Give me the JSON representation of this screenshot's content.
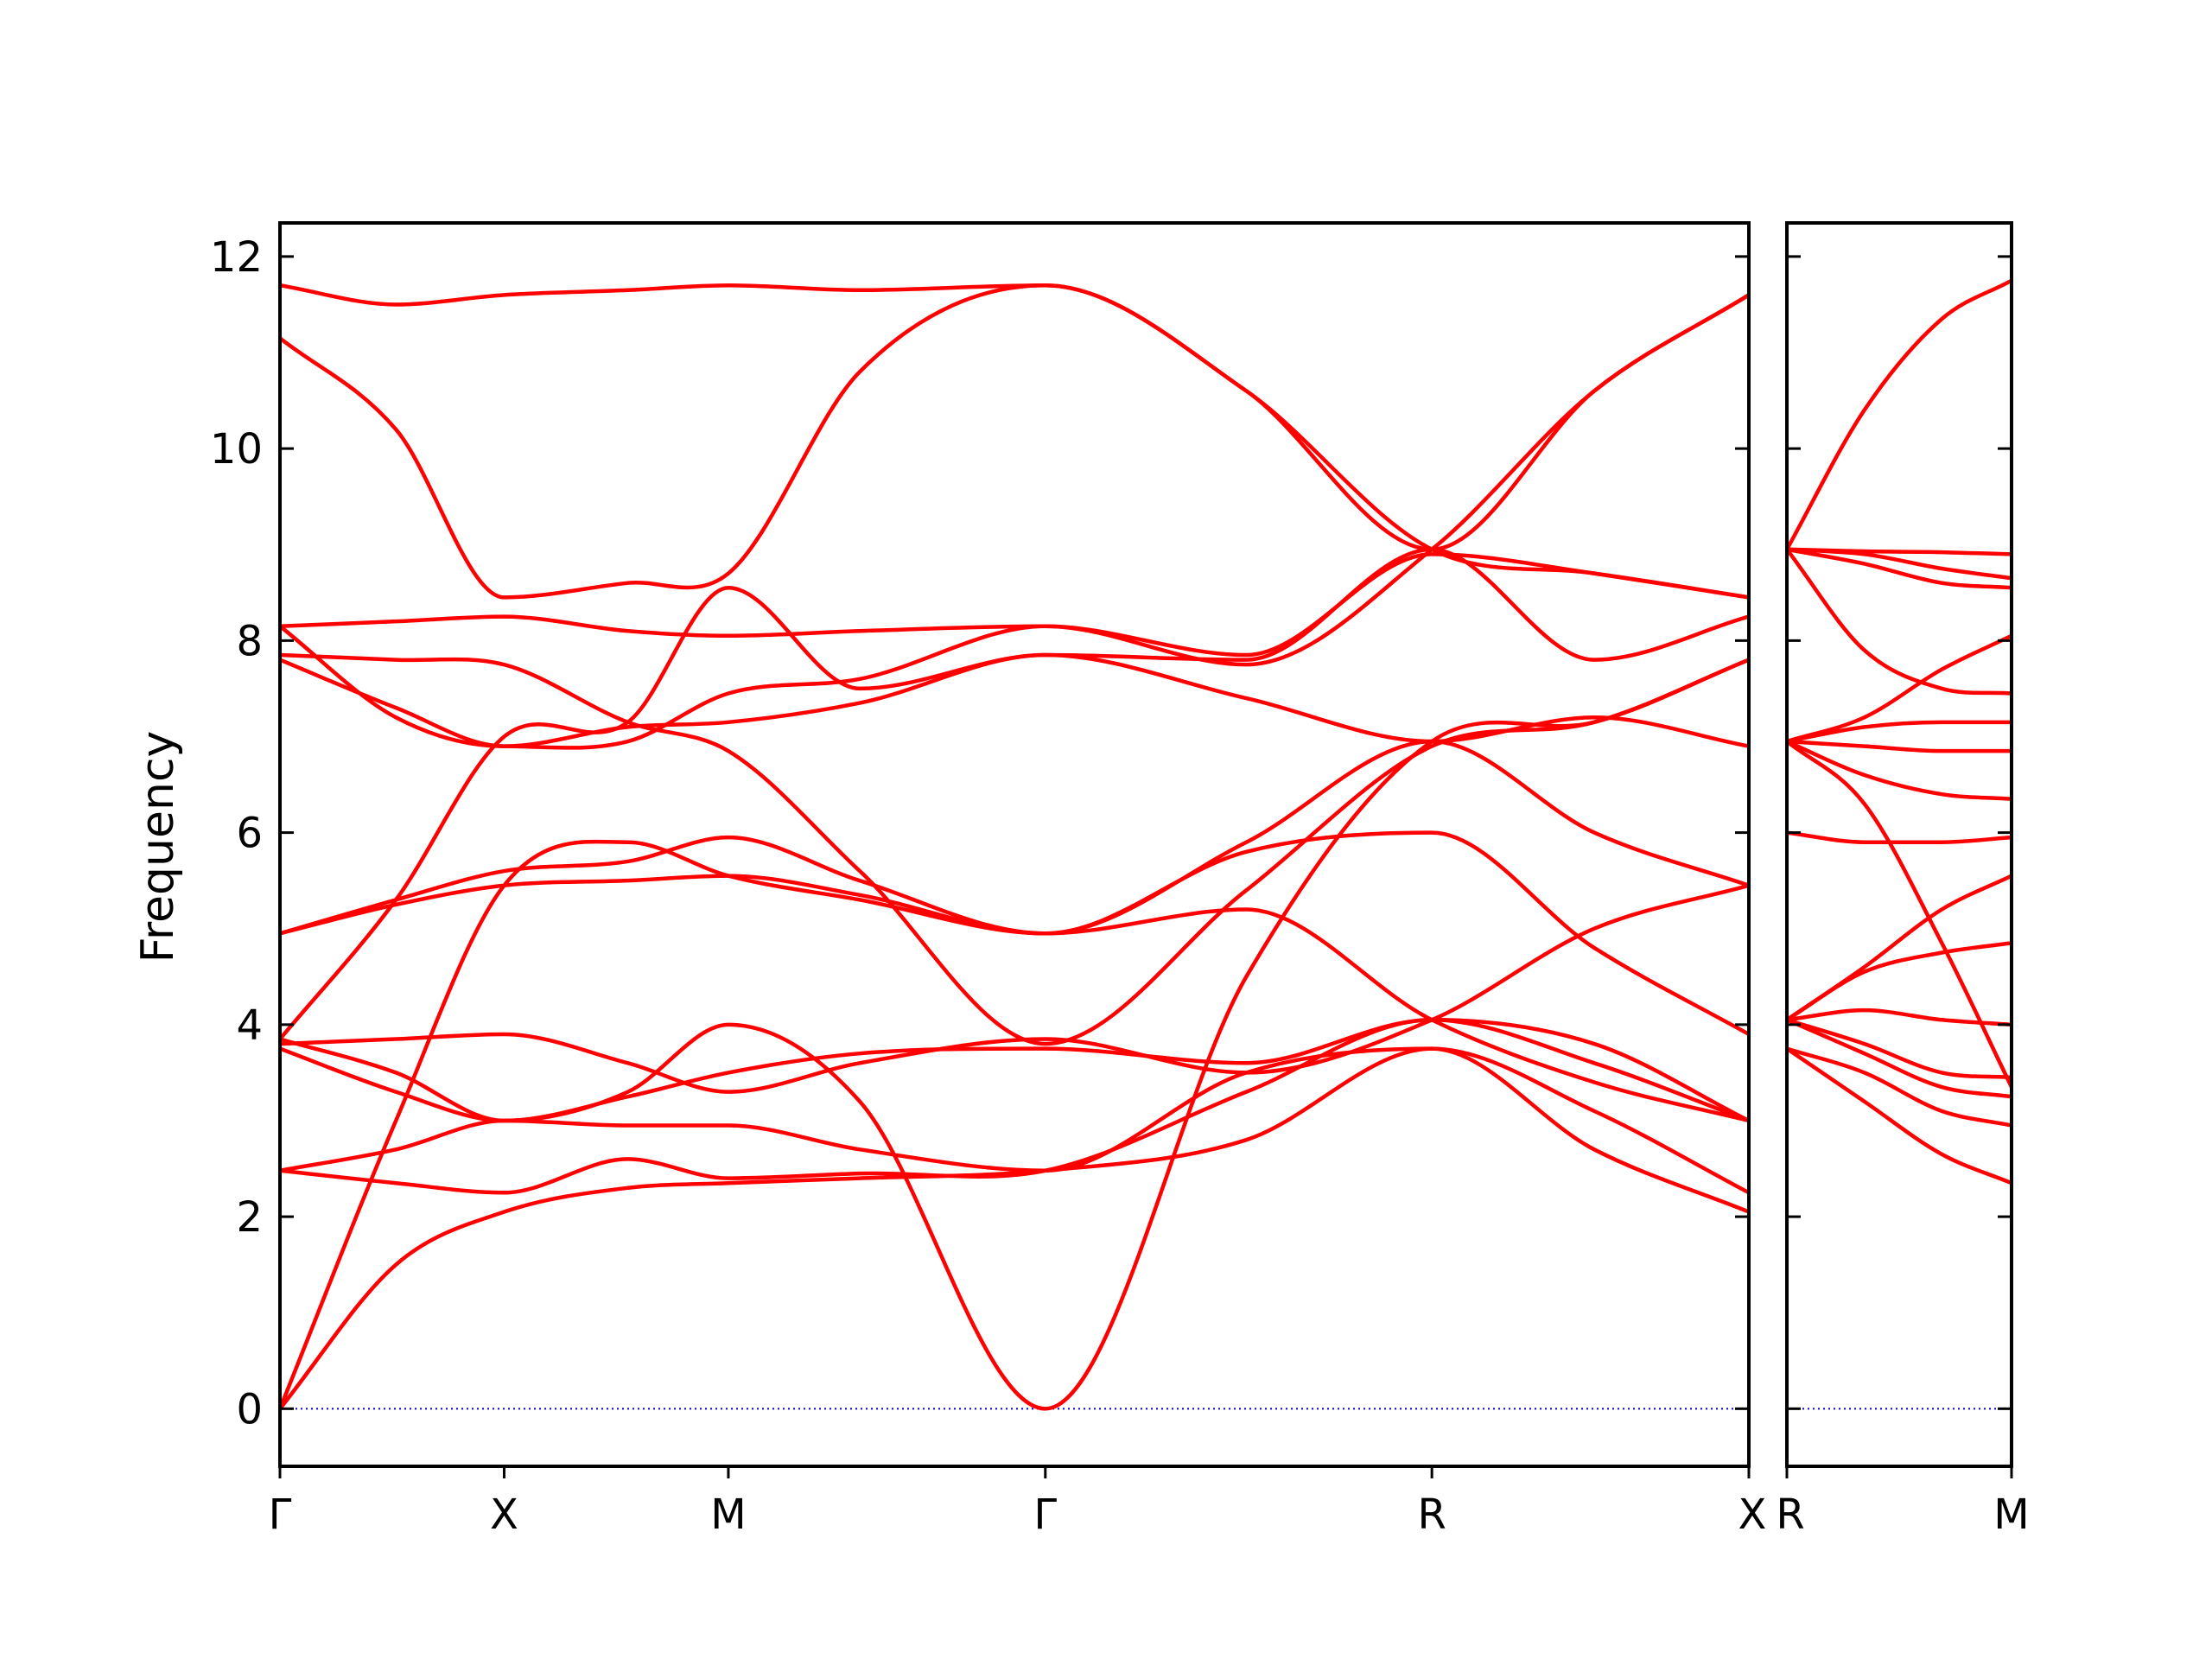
{
  "chart_data": {
    "type": "line",
    "ylabel": "Frequency",
    "xlabel": "",
    "ylim": [
      -0.6,
      12.35
    ],
    "y_ticks": [
      0,
      2,
      4,
      6,
      8,
      10,
      12
    ],
    "y_tick_labels": [
      "0",
      "2",
      "4",
      "6",
      "8",
      "10",
      "12"
    ],
    "grid": false,
    "line_color": "#ff0000",
    "zero_line_color": "#0000cc",
    "panels": [
      {
        "x_range": [
          0,
          3.8
        ],
        "x_ticks": [
          0,
          0.58,
          1.16,
          1.98,
          2.98,
          3.8
        ],
        "x_tick_labels": [
          "Γ",
          "X",
          "M",
          "Γ",
          "R",
          "X"
        ],
        "series": [
          {
            "x": [
              0,
              0.3,
              0.58,
              0.9,
              1.16,
              1.5,
              1.98,
              2.5,
              2.98,
              3.4,
              3.8
            ],
            "y": [
              0,
              1.5,
              2.05,
              2.3,
              2.35,
              2.4,
              2.48,
              2.8,
              3.75,
              2.7,
              2.05
            ]
          },
          {
            "x": [
              0,
              0.3,
              0.58,
              0.9,
              1.16,
              1.5,
              1.98,
              2.5,
              2.98,
              3.4,
              3.8
            ],
            "y": [
              0,
              3.0,
              5.45,
              5.9,
              5.55,
              5.3,
              4.95,
              5.8,
              6.0,
              4.8,
              3.9
            ]
          },
          {
            "x": [
              0,
              0.3,
              0.58,
              0.9,
              1.16,
              1.5,
              1.98,
              2.5,
              2.98,
              3.4,
              3.8
            ],
            "y": [
              2.48,
              2.35,
              2.25,
              2.6,
              2.4,
              2.45,
              2.48,
              3.3,
              4.05,
              3.6,
              3.0
            ]
          },
          {
            "x": [
              0,
              0.3,
              0.58,
              0.9,
              1.16,
              1.5,
              1.98,
              2.5,
              2.98,
              3.4,
              3.8
            ],
            "y": [
              2.48,
              2.7,
              3.0,
              2.95,
              2.95,
              2.7,
              2.48,
              3.5,
              3.75,
              3.1,
              2.25
            ]
          },
          {
            "x": [
              0,
              0.3,
              0.58,
              0.9,
              1.16,
              1.5,
              1.98,
              2.5,
              2.98,
              3.4,
              3.8
            ],
            "y": [
              3.85,
              3.5,
              3.0,
              3.3,
              4.0,
              3.2,
              0.0,
              4.5,
              6.95,
              7.15,
              7.8
            ]
          },
          {
            "x": [
              0,
              0.3,
              0.58,
              0.9,
              1.16,
              1.5,
              1.98,
              2.5,
              2.98,
              3.4,
              3.8
            ],
            "y": [
              3.75,
              3.3,
              3.0,
              3.25,
              3.5,
              3.7,
              3.75,
              3.6,
              4.05,
              3.8,
              3.0
            ]
          },
          {
            "x": [
              0,
              0.3,
              0.58,
              0.9,
              1.16,
              1.5,
              1.98,
              2.5,
              2.98,
              3.4,
              3.8
            ],
            "y": [
              3.8,
              3.85,
              3.9,
              3.6,
              3.3,
              3.6,
              3.85,
              3.5,
              4.05,
              5.0,
              5.45
            ]
          },
          {
            "x": [
              0,
              0.3,
              0.58,
              0.9,
              1.16,
              1.5,
              1.98,
              2.5,
              2.98,
              3.4,
              3.8
            ],
            "y": [
              3.85,
              5.3,
              7.0,
              7.15,
              8.55,
              7.5,
              7.85,
              7.8,
              8.95,
              7.8,
              8.25
            ]
          },
          {
            "x": [
              0,
              0.3,
              0.58,
              0.9,
              1.16,
              1.5,
              1.98,
              2.5,
              2.98,
              3.4,
              3.8
            ],
            "y": [
              4.95,
              5.3,
              5.6,
              5.7,
              5.95,
              5.5,
              4.95,
              5.2,
              4.05,
              3.4,
              3.0
            ]
          },
          {
            "x": [
              0,
              0.3,
              0.58,
              0.9,
              1.16,
              1.5,
              1.98,
              2.5,
              2.98,
              3.4,
              3.8
            ],
            "y": [
              4.95,
              5.25,
              5.45,
              5.5,
              5.55,
              5.35,
              4.95,
              5.9,
              6.95,
              6.0,
              5.45
            ]
          },
          {
            "x": [
              0,
              0.3,
              0.58,
              0.9,
              1.16,
              1.5,
              1.98,
              2.5,
              2.98,
              3.4,
              3.8
            ],
            "y": [
              7.8,
              7.3,
              6.9,
              7.1,
              7.15,
              7.35,
              7.85,
              7.4,
              6.95,
              7.2,
              6.9
            ]
          },
          {
            "x": [
              0,
              0.3,
              0.58,
              0.9,
              1.16,
              1.5,
              1.98,
              2.5,
              2.98,
              3.4,
              3.8
            ],
            "y": [
              7.85,
              7.8,
              7.75,
              7.15,
              6.85,
              5.6,
              3.8,
              5.4,
              6.9,
              7.15,
              7.8
            ]
          },
          {
            "x": [
              0,
              0.3,
              0.58,
              0.9,
              1.16,
              1.5,
              1.98,
              2.5,
              2.98,
              3.4,
              3.8
            ],
            "y": [
              8.15,
              7.2,
              6.9,
              6.95,
              7.45,
              7.6,
              8.15,
              7.85,
              8.9,
              8.7,
              8.45
            ]
          },
          {
            "x": [
              0,
              0.3,
              0.58,
              0.9,
              1.16,
              1.5,
              1.98,
              2.5,
              2.98,
              3.4,
              3.8
            ],
            "y": [
              8.15,
              8.2,
              8.25,
              8.1,
              8.05,
              8.1,
              8.15,
              7.75,
              8.95,
              10.6,
              11.6
            ]
          },
          {
            "x": [
              0,
              0.3,
              0.58,
              0.9,
              1.16,
              1.5,
              1.98,
              2.5,
              2.98,
              3.4,
              3.8
            ],
            "y": [
              11.15,
              10.2,
              8.45,
              8.6,
              8.7,
              10.8,
              11.7,
              10.6,
              8.95,
              10.6,
              11.6
            ]
          },
          {
            "x": [
              0,
              0.3,
              0.58,
              0.9,
              1.16,
              1.5,
              1.98,
              2.5,
              2.98,
              3.4,
              3.8
            ],
            "y": [
              11.7,
              11.5,
              11.6,
              11.65,
              11.7,
              11.65,
              11.7,
              10.6,
              8.95,
              8.7,
              8.45
            ]
          }
        ]
      },
      {
        "x_range": [
          0,
          0.58
        ],
        "x_ticks": [
          0,
          0.58
        ],
        "x_tick_labels": [
          "R",
          "M"
        ],
        "series": [
          {
            "x": [
              0,
              0.2,
              0.4,
              0.58
            ],
            "y": [
              3.75,
              3.2,
              2.65,
              2.35
            ]
          },
          {
            "x": [
              0,
              0.2,
              0.4,
              0.58
            ],
            "y": [
              3.75,
              3.5,
              3.1,
              2.95
            ]
          },
          {
            "x": [
              0,
              0.2,
              0.4,
              0.58
            ],
            "y": [
              4.05,
              3.7,
              3.35,
              3.25
            ]
          },
          {
            "x": [
              0,
              0.2,
              0.4,
              0.58
            ],
            "y": [
              4.05,
              3.8,
              3.5,
              3.45
            ]
          },
          {
            "x": [
              0,
              0.2,
              0.4,
              0.58
            ],
            "y": [
              4.05,
              4.15,
              4.05,
              4.0
            ]
          },
          {
            "x": [
              0,
              0.2,
              0.4,
              0.58
            ],
            "y": [
              4.05,
              4.55,
              4.75,
              4.85
            ]
          },
          {
            "x": [
              0,
              0.2,
              0.4,
              0.58
            ],
            "y": [
              4.05,
              4.6,
              5.2,
              5.55
            ]
          },
          {
            "x": [
              0,
              0.2,
              0.4,
              0.58
            ],
            "y": [
              6.0,
              5.9,
              5.9,
              5.95
            ]
          },
          {
            "x": [
              0,
              0.2,
              0.4,
              0.58
            ],
            "y": [
              6.95,
              6.3,
              4.85,
              3.35
            ]
          },
          {
            "x": [
              0,
              0.2,
              0.4,
              0.58
            ],
            "y": [
              6.95,
              6.6,
              6.4,
              6.35
            ]
          },
          {
            "x": [
              0,
              0.2,
              0.4,
              0.58
            ],
            "y": [
              6.95,
              6.9,
              6.85,
              6.85
            ]
          },
          {
            "x": [
              0,
              0.2,
              0.4,
              0.58
            ],
            "y": [
              6.95,
              7.1,
              7.15,
              7.15
            ]
          },
          {
            "x": [
              0,
              0.2,
              0.4,
              0.58
            ],
            "y": [
              6.95,
              7.2,
              7.7,
              8.05
            ]
          },
          {
            "x": [
              0,
              0.2,
              0.4,
              0.58
            ],
            "y": [
              8.95,
              7.9,
              7.5,
              7.45
            ]
          },
          {
            "x": [
              0,
              0.2,
              0.4,
              0.58
            ],
            "y": [
              8.95,
              8.8,
              8.6,
              8.55
            ]
          },
          {
            "x": [
              0,
              0.2,
              0.4,
              0.58
            ],
            "y": [
              8.95,
              8.9,
              8.75,
              8.65
            ]
          },
          {
            "x": [
              0,
              0.2,
              0.4,
              0.58
            ],
            "y": [
              8.95,
              8.93,
              8.92,
              8.9
            ]
          },
          {
            "x": [
              0,
              0.2,
              0.4,
              0.58
            ],
            "y": [
              8.95,
              10.4,
              11.35,
              11.75
            ]
          }
        ]
      }
    ]
  }
}
